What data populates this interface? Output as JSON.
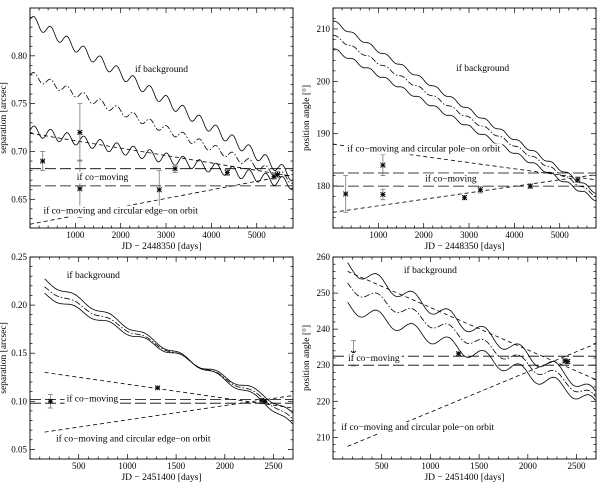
{
  "chart_data": [
    {
      "type": "line",
      "xlabel": "JD − 2448350 [days]",
      "ylabel": "separation [arcsec]",
      "xlim": [
        0,
        5800
      ],
      "ylim": [
        0.62,
        0.85
      ],
      "xticks": [
        1000,
        2000,
        3000,
        4000,
        5000
      ],
      "xtick_labels": [
        "1000",
        "2000",
        "3000",
        "4000",
        "5000"
      ],
      "yticks": [
        0.65,
        0.7,
        0.75,
        0.8
      ],
      "ytick_labels": [
        "0.65",
        "0.70",
        "0.75",
        "0.80"
      ],
      "annotations": [
        {
          "text": "if background",
          "x": 2900,
          "y": 0.783
        },
        {
          "text": "if co−moving",
          "x": 1600,
          "y": 0.67
        },
        {
          "text": "if co−moving and circular edge−on orbit",
          "x": 2000,
          "y": 0.635
        }
      ],
      "series": [
        {
          "style": "solid",
          "kind": "wave",
          "x0": 0,
          "y0": 0.838,
          "x1": 5800,
          "y1": 0.674,
          "amp": 0.0055,
          "period": 365
        },
        {
          "style": "dashdot",
          "kind": "wave",
          "x0": 0,
          "y0": 0.78,
          "x1": 5800,
          "y1": 0.67,
          "amp": 0.004,
          "period": 365
        },
        {
          "style": "solid",
          "kind": "wave",
          "x0": 0,
          "y0": 0.722,
          "x1": 5800,
          "y1": 0.666,
          "amp": 0.0055,
          "period": 365
        },
        {
          "style": "shortdash",
          "kind": "line",
          "x0": 0,
          "y0": 0.719,
          "x1": 5800,
          "y1": 0.674
        },
        {
          "style": "shortdash",
          "kind": "line",
          "x0": 0,
          "y0": 0.624,
          "x1": 5800,
          "y1": 0.676
        },
        {
          "style": "longdash",
          "kind": "line",
          "x0": 0,
          "y0": 0.682,
          "x1": 5800,
          "y1": 0.682
        },
        {
          "style": "longdash",
          "kind": "line",
          "x0": 0,
          "y0": 0.664,
          "x1": 5800,
          "y1": 0.664
        }
      ],
      "points": [
        {
          "x": 280,
          "y": 0.69,
          "err": 0.01
        },
        {
          "x": 1100,
          "y": 0.72,
          "err": 0.03
        },
        {
          "x": 1100,
          "y": 0.661,
          "err": 0.03
        },
        {
          "x": 2850,
          "y": 0.66,
          "err": 0.02
        },
        {
          "x": 3200,
          "y": 0.682,
          "err": 0.004
        },
        {
          "x": 4350,
          "y": 0.678,
          "err": 0.003
        },
        {
          "x": 5380,
          "y": 0.674,
          "err": 0.003
        },
        {
          "x": 5460,
          "y": 0.676,
          "err": 0.003
        }
      ]
    },
    {
      "type": "line",
      "xlabel": "JD − 2448350 [days]",
      "ylabel": "position angle [°]",
      "xlim": [
        0,
        5800
      ],
      "ylim": [
        172,
        214
      ],
      "xticks": [
        1000,
        2000,
        3000,
        4000,
        5000
      ],
      "xtick_labels": [
        "1000",
        "2000",
        "3000",
        "4000",
        "5000"
      ],
      "yticks": [
        180,
        190,
        200,
        210
      ],
      "ytick_labels": [
        "180",
        "190",
        "200",
        "210"
      ],
      "annotations": [
        {
          "text": "if background",
          "x": 3300,
          "y": 202
        },
        {
          "text": "if co−moving and circular pole−on orbit",
          "x": 2000,
          "y": 186.6
        },
        {
          "text": "if co−moving",
          "x": 2600,
          "y": 180.9
        }
      ],
      "series": [
        {
          "style": "solid",
          "kind": "wave",
          "x0": 0,
          "y0": 211.5,
          "x1": 5800,
          "y1": 178.8,
          "amp": 0.3,
          "period": 365
        },
        {
          "style": "dashdot",
          "kind": "wave",
          "x0": 0,
          "y0": 208.8,
          "x1": 5800,
          "y1": 178.2,
          "amp": 0.25,
          "period": 365
        },
        {
          "style": "solid",
          "kind": "wave",
          "x0": 0,
          "y0": 206.2,
          "x1": 5800,
          "y1": 177.4,
          "amp": 0.3,
          "period": 365
        },
        {
          "style": "shortdash",
          "kind": "line",
          "x0": 0,
          "y0": 188.0,
          "x1": 5800,
          "y1": 181.2
        },
        {
          "style": "shortdash",
          "kind": "line",
          "x0": 0,
          "y0": 175.0,
          "x1": 5800,
          "y1": 182.2
        },
        {
          "style": "longdash",
          "kind": "line",
          "x0": 0,
          "y0": 182.5,
          "x1": 5800,
          "y1": 182.5
        },
        {
          "style": "longdash",
          "kind": "line",
          "x0": 0,
          "y0": 180.0,
          "x1": 5800,
          "y1": 180.0
        }
      ],
      "points": [
        {
          "x": 280,
          "y": 178.5,
          "err": 3.5
        },
        {
          "x": 1100,
          "y": 184.0,
          "err": 2.0
        },
        {
          "x": 1100,
          "y": 178.4,
          "err": 1.0
        },
        {
          "x": 2900,
          "y": 177.8,
          "err": 0.4
        },
        {
          "x": 3250,
          "y": 179.3,
          "err": 0.6
        },
        {
          "x": 4350,
          "y": 180.0,
          "err": 0.4
        },
        {
          "x": 5400,
          "y": 181.2,
          "err": 0.5
        }
      ]
    },
    {
      "type": "line",
      "xlabel": "JD − 2451400 [days]",
      "ylabel": "separation [arcsec]",
      "xlim": [
        0,
        2700
      ],
      "ylim": [
        0.04,
        0.25
      ],
      "xticks": [
        500,
        1000,
        1500,
        2000,
        2500
      ],
      "xtick_labels": [
        "500",
        "1000",
        "1500",
        "2000",
        "2500"
      ],
      "yticks": [
        0.05,
        0.1,
        0.15,
        0.2,
        0.25
      ],
      "ytick_labels": [
        "0.05",
        "0.10",
        "0.15",
        "0.20",
        "0.25"
      ],
      "annotations": [
        {
          "text": "if background",
          "x": 650,
          "y": 0.228
        },
        {
          "text": "if co−moving",
          "x": 640,
          "y": 0.1
        },
        {
          "text": "if co−moving and circular edge−on orbit",
          "x": 1060,
          "y": 0.058
        }
      ],
      "series": [
        {
          "style": "solid",
          "kind": "wave",
          "x0": 150,
          "y0": 0.226,
          "x1": 2700,
          "y1": 0.083,
          "amp": 0.0025,
          "period": 365,
          "bend": 2400
        },
        {
          "style": "dashdot",
          "kind": "wave",
          "x0": 150,
          "y0": 0.218,
          "x1": 2700,
          "y1": 0.088,
          "amp": 0.002,
          "period": 365,
          "bend": 2400
        },
        {
          "style": "solid",
          "kind": "wave",
          "x0": 150,
          "y0": 0.211,
          "x1": 2700,
          "y1": 0.093,
          "amp": 0.0025,
          "period": 365,
          "bend": 2400
        },
        {
          "style": "shortdash",
          "kind": "line",
          "x0": 150,
          "y0": 0.13,
          "x1": 2700,
          "y1": 0.093
        },
        {
          "style": "shortdash",
          "kind": "line",
          "x0": 150,
          "y0": 0.068,
          "x1": 2700,
          "y1": 0.106
        },
        {
          "style": "longdash",
          "kind": "line",
          "x0": 0,
          "y0": 0.102,
          "x1": 2700,
          "y1": 0.102
        },
        {
          "style": "longdash",
          "kind": "line",
          "x0": 0,
          "y0": 0.098,
          "x1": 2700,
          "y1": 0.098
        }
      ],
      "points": [
        {
          "x": 210,
          "y": 0.1,
          "err": 0.007
        },
        {
          "x": 1310,
          "y": 0.114,
          "err": 0.001
        },
        {
          "x": 2380,
          "y": 0.101,
          "err": 0.001
        },
        {
          "x": 2410,
          "y": 0.1,
          "err": 0.001
        }
      ]
    },
    {
      "type": "line",
      "xlabel": "JD − 2451400 [days]",
      "ylabel": "position angle [°]",
      "xlim": [
        0,
        2700
      ],
      "ylim": [
        204,
        260
      ],
      "xticks": [
        500,
        1000,
        1500,
        2000,
        2500
      ],
      "xtick_labels": [
        "500",
        "1000",
        "1500",
        "2000",
        "2500"
      ],
      "yticks": [
        210,
        220,
        230,
        240,
        250,
        260
      ],
      "ytick_labels": [
        "210",
        "220",
        "230",
        "240",
        "250",
        "260"
      ],
      "annotations": [
        {
          "text": "if background",
          "x": 1000,
          "y": 255.5
        },
        {
          "text": "if co−moving",
          "x": 420,
          "y": 231.2
        },
        {
          "text": "if co−moving and circular pole−on orbit",
          "x": 870,
          "y": 212
        }
      ],
      "series": [
        {
          "style": "solid",
          "kind": "wave",
          "x0": 150,
          "y0": 257.5,
          "x1": 2700,
          "y1": 223.5,
          "amp": 1.8,
          "period": 365,
          "bend": 2420
        },
        {
          "style": "dashdot",
          "kind": "wave",
          "x0": 150,
          "y0": 252.0,
          "x1": 2700,
          "y1": 222.0,
          "amp": 1.5,
          "period": 365,
          "bend": 2420
        },
        {
          "style": "solid",
          "kind": "wave",
          "x0": 150,
          "y0": 246.5,
          "x1": 2700,
          "y1": 220.5,
          "amp": 1.8,
          "period": 365,
          "bend": 2420
        },
        {
          "style": "shortdash",
          "kind": "line",
          "x0": 150,
          "y0": 256.0,
          "x1": 2700,
          "y1": 226.0
        },
        {
          "style": "shortdash",
          "kind": "line",
          "x0": 150,
          "y0": 207.5,
          "x1": 2700,
          "y1": 236.0
        },
        {
          "style": "longdash",
          "kind": "line",
          "x0": 0,
          "y0": 232.5,
          "x1": 2700,
          "y1": 232.5
        },
        {
          "style": "longdash",
          "kind": "line",
          "x0": 0,
          "y0": 230.0,
          "x1": 2700,
          "y1": 230.0
        }
      ],
      "points": [
        {
          "x": 210,
          "y": 233.3,
          "err": 3.5
        },
        {
          "x": 1290,
          "y": 233.2,
          "err": 0.4
        },
        {
          "x": 2380,
          "y": 231.2,
          "err": 0.6
        },
        {
          "x": 2410,
          "y": 231.0,
          "err": 0.6
        }
      ]
    }
  ]
}
